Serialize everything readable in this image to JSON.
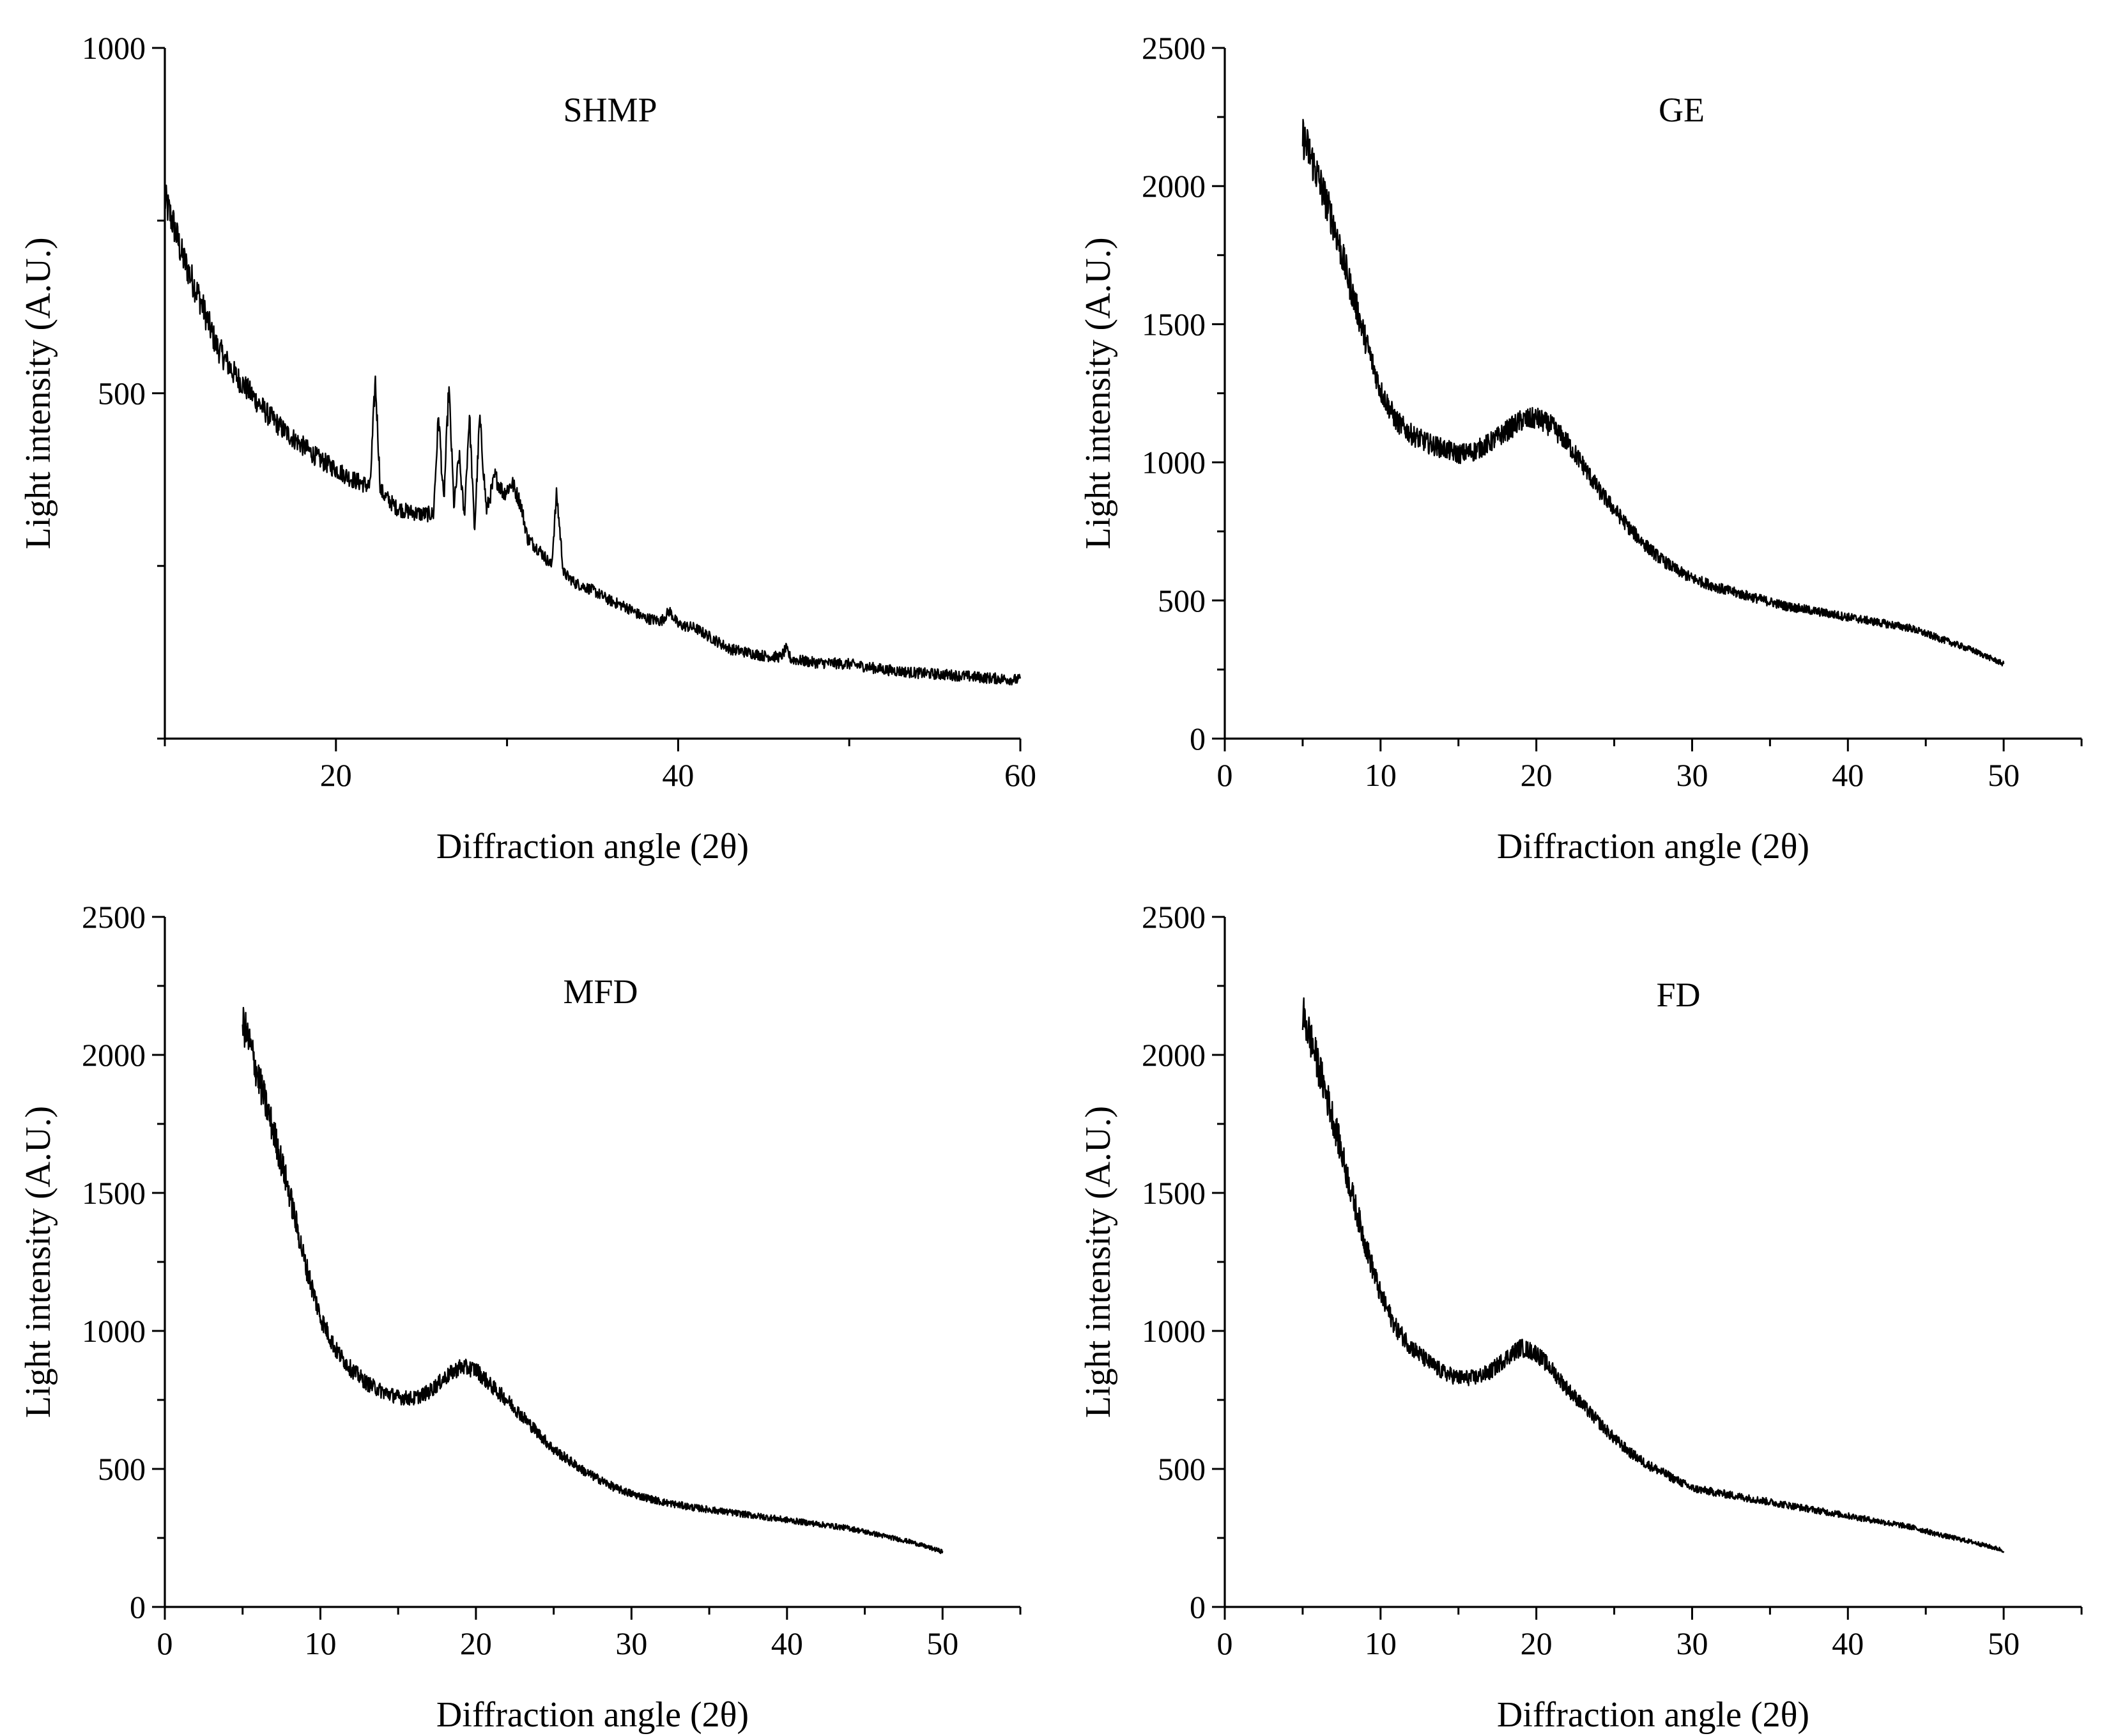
{
  "chart_data": [
    {
      "type": "line",
      "panel": "top-left",
      "label": "SHMP",
      "xlabel": "Diffraction angle (2θ)",
      "ylabel": "Light intensity (A.U.)",
      "xlim": [
        10,
        60
      ],
      "ylim": [
        0,
        1000
      ],
      "xticks": [
        20,
        40,
        60
      ],
      "yticks": [
        500,
        1000
      ],
      "series": [
        {
          "name": "SHMP",
          "x": [
            10,
            10.5,
            11,
            12,
            13,
            14,
            15,
            16,
            17,
            18,
            19,
            20,
            21,
            21.5,
            22,
            22.3,
            22.6,
            22.9,
            23.5,
            24,
            25,
            25.7,
            26,
            26.3,
            26.6,
            26.9,
            27.2,
            27.5,
            27.8,
            28.1,
            28.4,
            28.8,
            29.3,
            29.8,
            30.3,
            30.8,
            31.2,
            32,
            32.6,
            32.9,
            33.3,
            34,
            35,
            36,
            37,
            38,
            39,
            39.5,
            40,
            41,
            42,
            43,
            44,
            45,
            46,
            46.3,
            46.6,
            48,
            50,
            52,
            54,
            56,
            58,
            60
          ],
          "y": [
            780,
            745,
            700,
            640,
            570,
            530,
            500,
            470,
            445,
            425,
            405,
            390,
            375,
            370,
            365,
            520,
            360,
            350,
            335,
            330,
            325,
            325,
            470,
            340,
            510,
            335,
            410,
            320,
            470,
            300,
            465,
            330,
            380,
            355,
            370,
            340,
            290,
            270,
            250,
            355,
            240,
            225,
            215,
            200,
            190,
            175,
            170,
            185,
            165,
            160,
            145,
            130,
            125,
            120,
            118,
            130,
            115,
            110,
            108,
            100,
            95,
            92,
            88,
            85
          ]
        }
      ]
    },
    {
      "type": "line",
      "panel": "top-right",
      "label": "GE",
      "xlabel": "Diffraction angle (2θ)",
      "ylabel": "Light intensity (A.U.)",
      "xlim": [
        0,
        55
      ],
      "ylim": [
        0,
        2500
      ],
      "xticks": [
        0,
        10,
        20,
        30,
        40,
        50
      ],
      "yticks": [
        0,
        500,
        1000,
        1500,
        2000,
        2500
      ],
      "series": [
        {
          "name": "GE",
          "x": [
            5,
            5.5,
            6,
            7,
            8,
            9,
            10,
            11,
            12,
            13,
            14,
            15,
            16,
            17,
            18,
            19,
            20,
            21,
            22,
            23,
            24,
            25,
            26,
            27,
            28,
            29,
            30,
            32,
            34,
            36,
            38,
            40,
            42,
            44,
            46,
            48,
            50
          ],
          "y": [
            2180,
            2110,
            2030,
            1860,
            1650,
            1450,
            1260,
            1150,
            1100,
            1070,
            1050,
            1030,
            1040,
            1070,
            1110,
            1150,
            1160,
            1130,
            1070,
            990,
            900,
            830,
            760,
            700,
            650,
            610,
            580,
            540,
            510,
            480,
            460,
            440,
            420,
            400,
            360,
            320,
            270
          ]
        }
      ]
    },
    {
      "type": "line",
      "panel": "bottom-left",
      "label": "MFD",
      "xlabel": "Diffraction angle (2θ)",
      "ylabel": "Light intensity (A.U.)",
      "xlim": [
        0,
        55
      ],
      "ylim": [
        0,
        2500
      ],
      "xticks": [
        0,
        10,
        20,
        30,
        40,
        50
      ],
      "yticks": [
        0,
        500,
        1000,
        1500,
        2000,
        2500
      ],
      "series": [
        {
          "name": "MFD",
          "x": [
            5,
            5.5,
            6,
            7,
            8,
            9,
            10,
            11,
            12,
            13,
            14,
            15,
            16,
            17,
            18,
            19,
            20,
            21,
            22,
            23,
            24,
            25,
            26,
            27,
            28,
            29,
            30,
            32,
            34,
            36,
            38,
            40,
            42,
            44,
            46,
            48,
            50
          ],
          "y": [
            2120,
            2030,
            1920,
            1720,
            1500,
            1250,
            1050,
            930,
            860,
            810,
            780,
            760,
            755,
            780,
            830,
            870,
            860,
            800,
            750,
            690,
            630,
            570,
            530,
            490,
            460,
            430,
            410,
            380,
            360,
            345,
            330,
            315,
            300,
            285,
            260,
            235,
            200
          ]
        }
      ]
    },
    {
      "type": "line",
      "panel": "bottom-right",
      "label": "FD",
      "xlabel": "Diffraction angle (2θ)",
      "ylabel": "Light intensity (A.U.)",
      "xlim": [
        0,
        55
      ],
      "ylim": [
        0,
        2500
      ],
      "xticks": [
        0,
        10,
        20,
        30,
        40,
        50
      ],
      "yticks": [
        0,
        500,
        1000,
        1500,
        2000,
        2500
      ],
      "series": [
        {
          "name": "FD",
          "x": [
            5,
            5.5,
            6,
            7,
            8,
            9,
            10,
            11,
            12,
            13,
            14,
            15,
            16,
            17,
            18,
            19,
            20,
            21,
            22,
            23,
            24,
            25,
            26,
            27,
            28,
            29,
            30,
            32,
            34,
            36,
            38,
            40,
            42,
            44,
            46,
            48,
            50
          ],
          "y": [
            2150,
            2060,
            1960,
            1760,
            1530,
            1320,
            1130,
            1010,
            940,
            890,
            850,
            830,
            830,
            850,
            900,
            940,
            920,
            860,
            790,
            730,
            670,
            610,
            560,
            520,
            490,
            460,
            430,
            410,
            390,
            370,
            350,
            330,
            310,
            290,
            260,
            235,
            205
          ]
        }
      ]
    }
  ]
}
